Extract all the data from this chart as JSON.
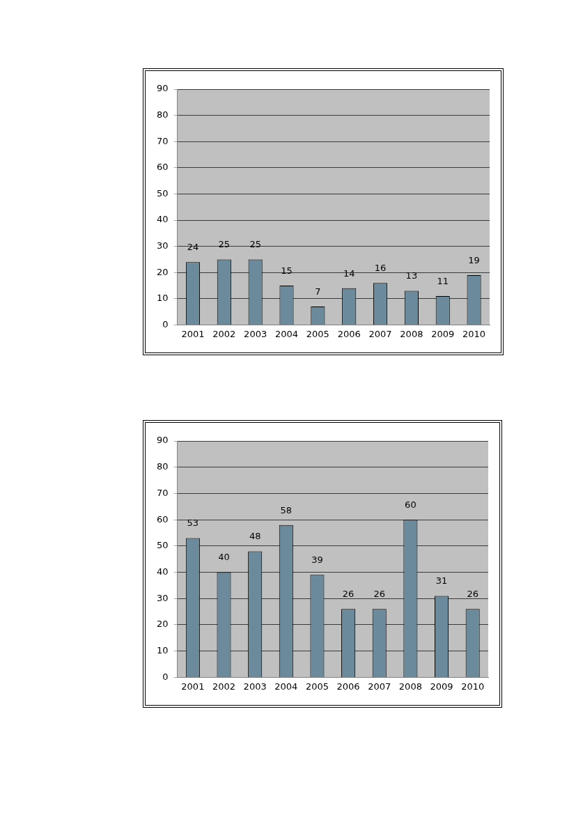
{
  "chart_data": [
    {
      "type": "bar",
      "categories": [
        "2001",
        "2002",
        "2003",
        "2004",
        "2005",
        "2006",
        "2007",
        "2008",
        "2009",
        "2010"
      ],
      "values": [
        24,
        25,
        25,
        15,
        7,
        14,
        16,
        13,
        11,
        19
      ],
      "color": "#6b8a9c",
      "ylim": [
        0,
        90
      ],
      "yticks": [
        0,
        10,
        20,
        30,
        40,
        50,
        60,
        70,
        80,
        90
      ],
      "grid": "y",
      "data_labels": true
    },
    {
      "type": "bar",
      "categories": [
        "2001",
        "2002",
        "2003",
        "2004",
        "2005",
        "2006",
        "2007",
        "2008",
        "2009",
        "2010"
      ],
      "values": [
        53,
        40,
        48,
        58,
        39,
        26,
        26,
        60,
        31,
        26
      ],
      "color": "#6b8a9c",
      "ylim": [
        0,
        90
      ],
      "yticks": [
        0,
        10,
        20,
        30,
        40,
        50,
        60,
        70,
        80,
        90
      ],
      "grid": "y",
      "data_labels": true
    }
  ]
}
